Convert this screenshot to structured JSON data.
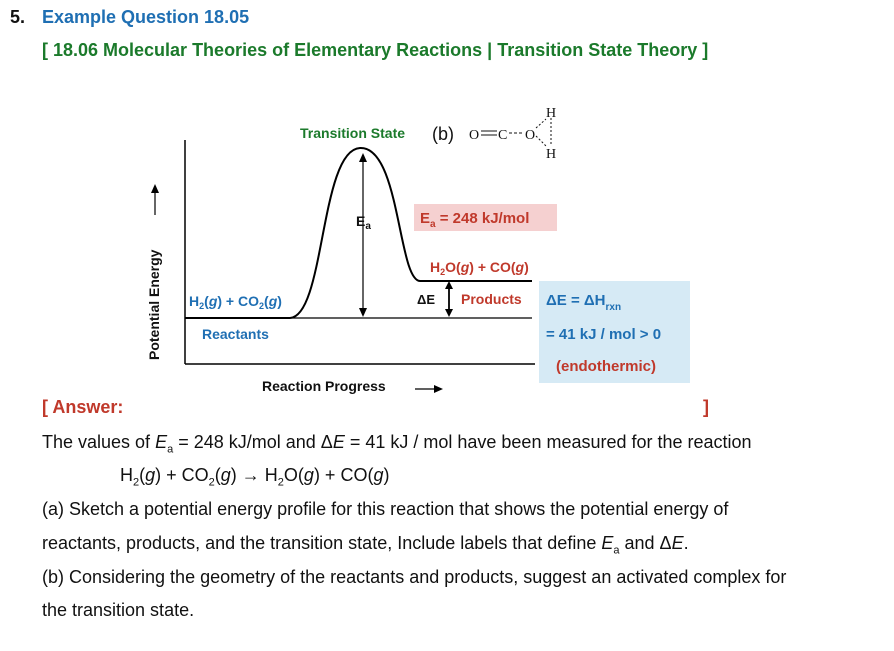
{
  "header": {
    "number": "5.",
    "title": "Example Question 18.05",
    "section": "[ 18.06 Molecular Theories of Elementary Reactions | Transition State Theory ]"
  },
  "diagram": {
    "ylabel": "Potential Energy",
    "xlabel": "Reaction Progress",
    "transition_state_label": "Transition State",
    "part_b_label": "(b)",
    "complex": {
      "o_left": "O",
      "c": "C",
      "o_right": "O",
      "h_top": "H",
      "h_bottom": "H"
    },
    "ea_arrow_label": "Ea",
    "ea_box": "Ea = 248 kJ/mol",
    "products_formula": "H2O(g) + CO(g)",
    "reactants_formula": "H2(g) + CO2(g)",
    "reactants_label": "Reactants",
    "products_label": "Products",
    "de_label": "ΔE",
    "info_box": {
      "line1": "ΔE = ΔHrxn",
      "line2": "= 41 kJ / mol > 0",
      "line3": "(endothermic)"
    },
    "colors": {
      "green": "#1b7a2b",
      "red": "#c0392b",
      "blue": "#1f6fb3",
      "ea_box_bg": "#f5d0d0",
      "info_box_bg": "#d6eaf5"
    }
  },
  "answer": {
    "open": "[ Answer:",
    "close": "]"
  },
  "question": {
    "line1": "The values of Ea = 248 kJ/mol and ΔE = 41 kJ / mol have been measured for the reaction",
    "reaction": "H2(g) + CO2(g) → H2O(g) + CO(g)",
    "line3": "(a) Sketch a potential energy profile for this reaction that shows the potential energy of",
    "line4": "reactants, products, and the transition state, Include labels that define Ea and ΔE.",
    "line5": "(b) Considering the geometry of the reactants and products, suggest an activated complex for",
    "line6": "the transition state."
  }
}
